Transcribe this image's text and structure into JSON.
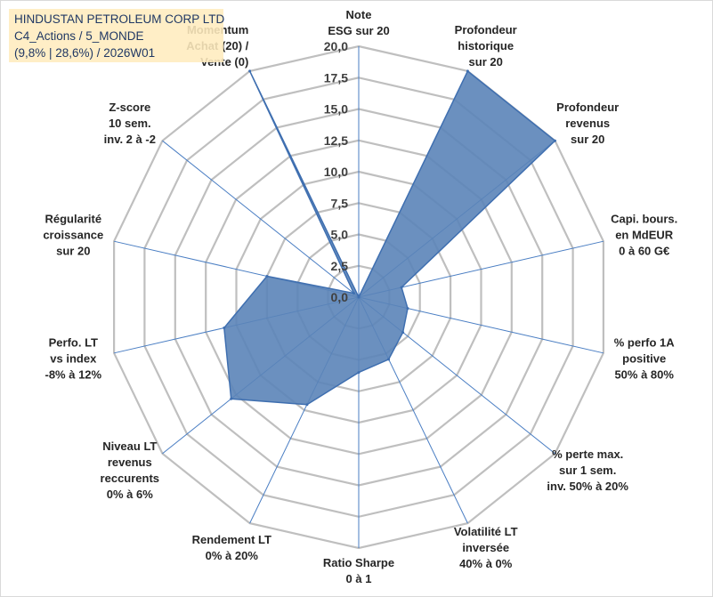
{
  "infobox": {
    "line1": "HINDUSTAN PETROLEUM CORP LTD",
    "line2": "C4_Actions / 5_MONDE",
    "line3": "(9,8% | 28,6%) / 2026W01"
  },
  "colors": {
    "fill": "#5b84b8",
    "stroke": "#3f6fb0",
    "spoke": "#4a7ec3",
    "grid": "#bfbfbf",
    "infobox_bg": "#ffecbe",
    "infobox_text": "#203864"
  },
  "chart_data": {
    "type": "radar",
    "title": "",
    "rmax": 20,
    "ticks": [
      "0,0",
      "2,5",
      "5,0",
      "7,5",
      "10,0",
      "12,5",
      "15,0",
      "17,5",
      "20,0"
    ],
    "tick_values": [
      0,
      2.5,
      5,
      7.5,
      10,
      12.5,
      15,
      17.5,
      20
    ],
    "grid_levels": [
      2.5,
      5,
      7.5,
      10,
      12.5,
      15,
      17.5,
      20
    ],
    "axes": [
      {
        "lines": [
          "Note",
          "ESG sur 20"
        ]
      },
      {
        "lines": [
          "Profondeur",
          "historique",
          "sur 20"
        ]
      },
      {
        "lines": [
          "Profondeur",
          "revenus",
          "sur 20"
        ]
      },
      {
        "lines": [
          "Capi. bours.",
          "en MdEUR",
          "0 à 60 G€"
        ]
      },
      {
        "lines": [
          "% perfo 1A",
          "positive",
          "50% à 80%"
        ]
      },
      {
        "lines": [
          "% perte max.",
          "sur 1 sem.",
          "inv. 50% à 20%"
        ]
      },
      {
        "lines": [
          "Volatilité LT",
          "inversée",
          "40% à 0%"
        ]
      },
      {
        "lines": [
          "Ratio Sharpe",
          "0 à 1"
        ]
      },
      {
        "lines": [
          "Rendement LT",
          "0% à 20%"
        ]
      },
      {
        "lines": [
          "Niveau LT",
          "revenus",
          "reccurents",
          "0% à 6%"
        ]
      },
      {
        "lines": [
          "Perfo. LT",
          "vs index",
          "-8% à 12%"
        ]
      },
      {
        "lines": [
          "Régularité",
          "croissance",
          "sur 20"
        ]
      },
      {
        "lines": [
          "Z-score",
          "10 sem.",
          "inv. 2 à -2"
        ]
      },
      {
        "lines": [
          "Momentum",
          "Achat (20) /",
          "Vente (0)"
        ]
      }
    ],
    "series": [
      {
        "name": "HINDUSTAN PETROLEUM CORP LTD",
        "values": [
          0.0,
          20.0,
          20.0,
          3.5,
          4.0,
          4.5,
          5.5,
          6.0,
          9.5,
          13.0,
          11.0,
          7.5,
          0.5,
          20.0
        ]
      }
    ]
  }
}
